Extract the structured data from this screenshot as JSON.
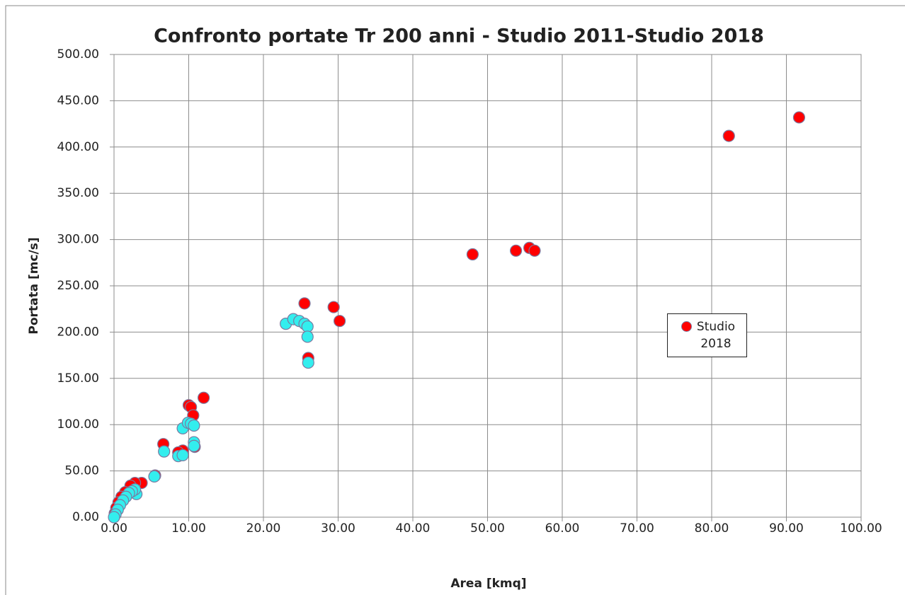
{
  "chart_data": {
    "type": "scatter",
    "title": "Confronto portate Tr 200 anni - Studio 2011-Studio 2018",
    "x_label": "Area [kmq]",
    "y_label": "Portata [mc/s]",
    "xlim": [
      0,
      100
    ],
    "ylim": [
      0,
      500
    ],
    "xticks": [
      {
        "value": 0,
        "label": "0.00"
      },
      {
        "value": 10,
        "label": "10.00"
      },
      {
        "value": 20,
        "label": "20.00"
      },
      {
        "value": 30,
        "label": "30.00"
      },
      {
        "value": 40,
        "label": "40.00"
      },
      {
        "value": 50,
        "label": "50.00"
      },
      {
        "value": 60,
        "label": "60.00"
      },
      {
        "value": 70,
        "label": "70.00"
      },
      {
        "value": 80,
        "label": "80.00"
      },
      {
        "value": 90,
        "label": "90.00"
      },
      {
        "value": 100,
        "label": "100.00"
      }
    ],
    "yticks": [
      {
        "value": 0,
        "label": "0.00"
      },
      {
        "value": 50,
        "label": "50.00"
      },
      {
        "value": 100,
        "label": "100.00"
      },
      {
        "value": 150,
        "label": "150.00"
      },
      {
        "value": 200,
        "label": "200.00"
      },
      {
        "value": 250,
        "label": "250.00"
      },
      {
        "value": 300,
        "label": "300.00"
      },
      {
        "value": 350,
        "label": "350.00"
      },
      {
        "value": 400,
        "label": "400.00"
      },
      {
        "value": 450,
        "label": "450.00"
      },
      {
        "value": 500,
        "label": "500.00"
      }
    ],
    "grid": true,
    "legend": "right",
    "series": [
      {
        "name": "Studio 2018",
        "color": "#ff0000",
        "x": [
          91.7,
          82.3,
          48.0,
          53.8,
          55.6,
          56.3,
          25.5,
          29.4,
          30.2,
          26.0,
          12.0,
          10.0,
          10.3,
          10.6,
          6.6,
          10.8,
          9.2,
          8.6,
          5.5,
          3.7,
          2.8,
          2.2,
          1.5,
          1.0,
          0.6,
          0.3,
          0.1
        ],
        "values": [
          432,
          412,
          284,
          288,
          291,
          288,
          231,
          227,
          212,
          172,
          129,
          121,
          119,
          110,
          79,
          76,
          72,
          70,
          45,
          37,
          37,
          34,
          27,
          22,
          16,
          10,
          4
        ]
      },
      {
        "color": "#33eeee",
        "x": [
          23.0,
          24.0,
          24.8,
          25.5,
          25.9,
          25.9,
          26.0,
          9.2,
          9.9,
          10.3,
          10.7,
          10.7,
          10.7,
          6.7,
          8.6,
          9.2,
          5.4,
          3.0,
          2.8,
          2.4,
          2.0,
          1.6,
          1.2,
          0.8,
          0.5,
          0.2,
          0.0
        ],
        "values": [
          209,
          214,
          212,
          209,
          206,
          195,
          167,
          96,
          102,
          101,
          99,
          81,
          77,
          71,
          66,
          67,
          44,
          25,
          30,
          28,
          26,
          22,
          18,
          13,
          8,
          3,
          0
        ]
      }
    ]
  }
}
